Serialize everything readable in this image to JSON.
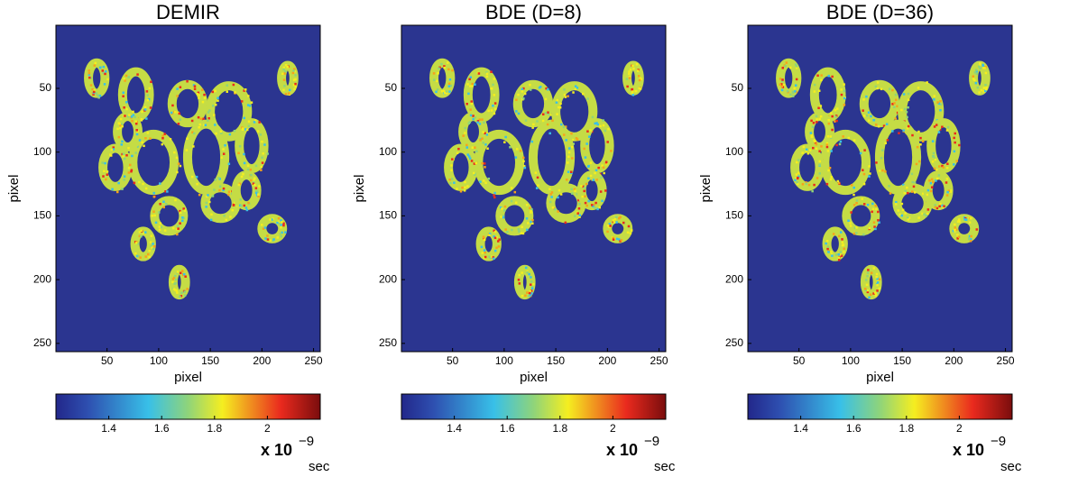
{
  "chart_data": [
    {
      "type": "heatmap",
      "title": "DEMIR",
      "xlabel": "pixel",
      "ylabel": "pixel",
      "xlim": [
        0.5,
        256.5
      ],
      "ylim": [
        0.5,
        256.5
      ],
      "xticks": [
        50,
        100,
        150,
        200,
        250
      ],
      "yticks": [
        50,
        100,
        150,
        200,
        250
      ],
      "colormap": "jet",
      "colorbar": {
        "clim": [
          1.2,
          2.2
        ],
        "ticks": [
          1.4,
          1.6,
          1.8,
          2
        ],
        "label": "x 10",
        "exponent": "−9",
        "unit": "sec"
      }
    },
    {
      "type": "heatmap",
      "title": "BDE (D=8)",
      "xlabel": "pixel",
      "ylabel": "pixel",
      "xlim": [
        0.5,
        256.5
      ],
      "ylim": [
        0.5,
        256.5
      ],
      "xticks": [
        50,
        100,
        150,
        200,
        250
      ],
      "yticks": [
        50,
        100,
        150,
        200,
        250
      ],
      "colormap": "jet",
      "colorbar": {
        "clim": [
          1.2,
          2.2
        ],
        "ticks": [
          1.4,
          1.6,
          1.8,
          2
        ],
        "label": "x 10",
        "exponent": "−9",
        "unit": "sec"
      }
    },
    {
      "type": "heatmap",
      "title": "BDE (D=36)",
      "xlabel": "pixel",
      "ylabel": "pixel",
      "xlim": [
        0.5,
        256.5
      ],
      "ylim": [
        0.5,
        256.5
      ],
      "xticks": [
        50,
        100,
        150,
        200,
        250
      ],
      "yticks": [
        50,
        100,
        150,
        200,
        250
      ],
      "colormap": "jet",
      "colorbar": {
        "clim": [
          1.2,
          2.2
        ],
        "ticks": [
          1.4,
          1.6,
          1.8,
          2
        ],
        "label": "x 10",
        "exponent": "−9",
        "unit": "sec"
      }
    }
  ]
}
